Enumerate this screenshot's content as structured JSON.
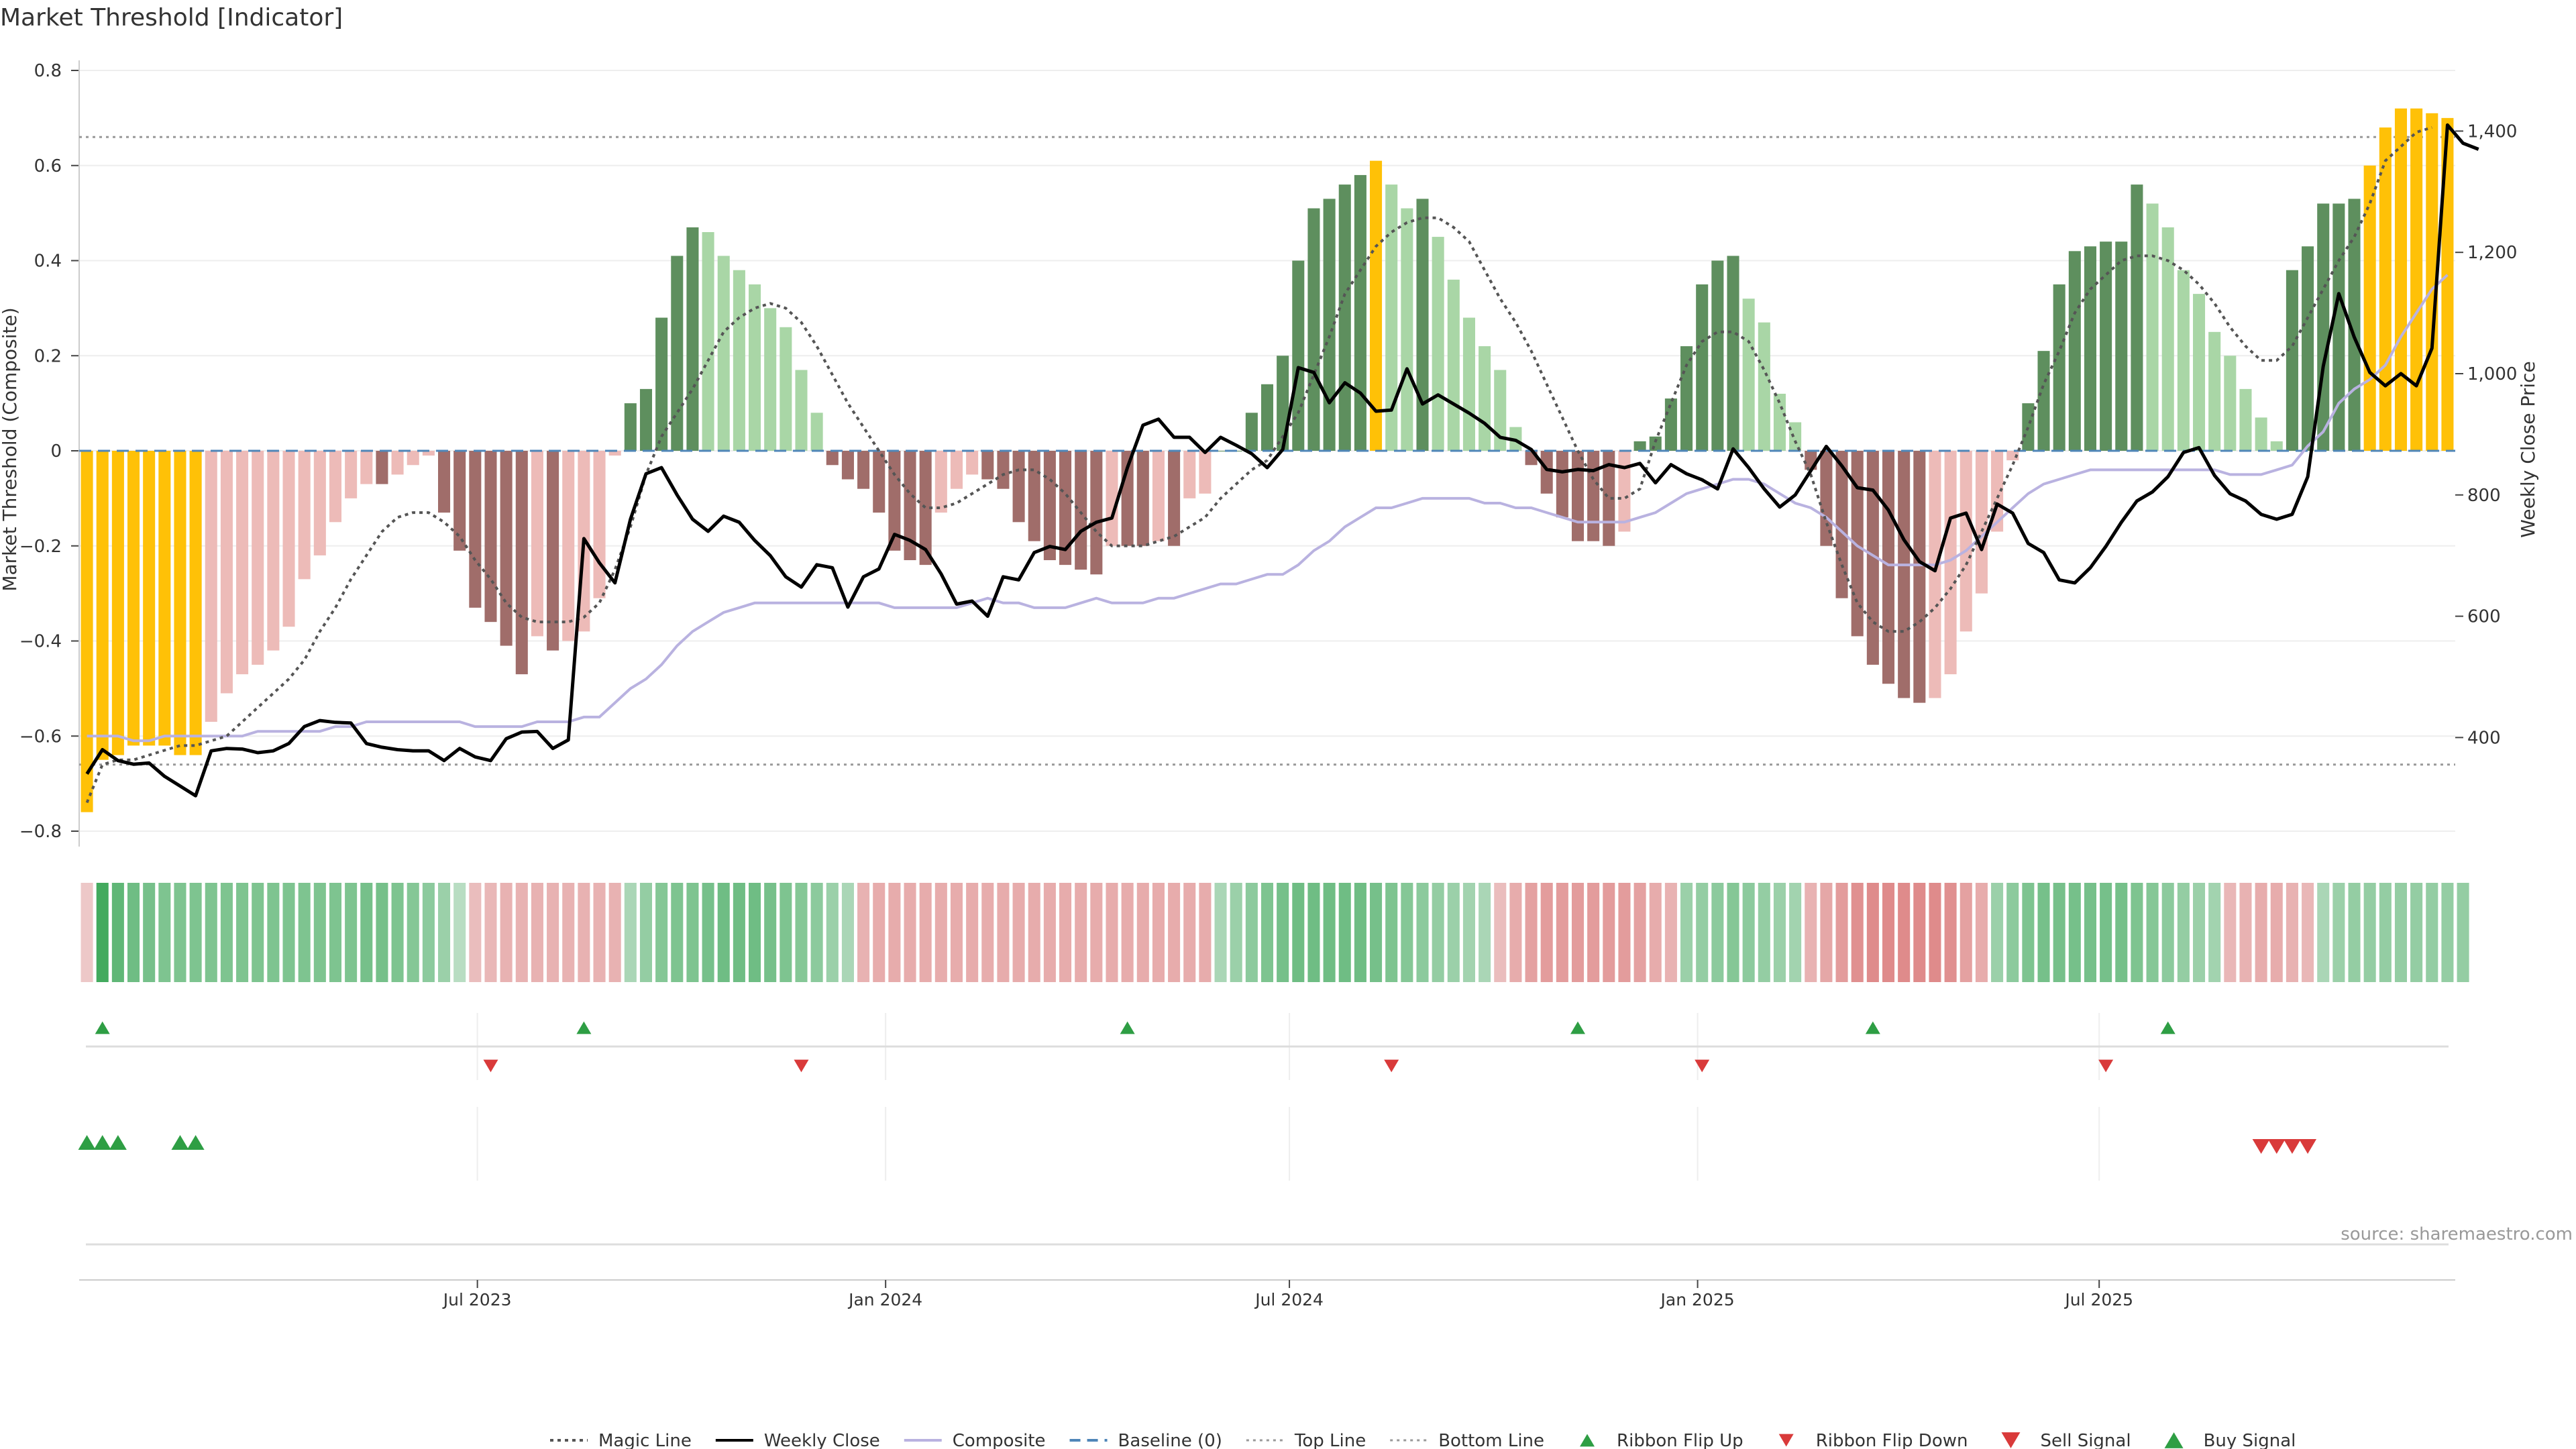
{
  "title": "Market Threshold [Indicator]",
  "source_note": "source: sharemaestro.com",
  "colors": {
    "extreme": "#FFC107",
    "pos_dark": "#5E8F5E",
    "pos_light": "#A9D6A6",
    "neg_dark": "#A06D6A",
    "neg_light": "#EDBBB8",
    "magic_line": "#555555",
    "weekly_close": "#000000",
    "composite": "#B9B2E0",
    "baseline": "#4F86B8",
    "threshold_line": "#999999",
    "ribbon_up": "#2E9E44",
    "ribbon_down": "#D93A3A",
    "grid": "#eeeeee"
  },
  "legend": [
    {
      "label": "Magic Line",
      "style": "dotted-line"
    },
    {
      "label": "Weekly Close",
      "style": "solid-line"
    },
    {
      "label": "Composite",
      "style": "composite-line"
    },
    {
      "label": "Baseline (0)",
      "style": "dashed-line"
    },
    {
      "label": "Top Line",
      "style": "fine-dotted-line"
    },
    {
      "label": "Bottom Line",
      "style": "fine-dotted-line"
    },
    {
      "label": "Ribbon Flip Up",
      "style": "triangle-up-green"
    },
    {
      "label": "Ribbon Flip Down",
      "style": "triangle-down-red"
    },
    {
      "label": "Sell Signal",
      "style": "triangle-down-red-large"
    },
    {
      "label": "Buy Signal",
      "style": "triangle-up-green-large"
    }
  ],
  "chart_data": {
    "type": "bar",
    "title": "Market Threshold [Indicator]",
    "x_start": "2023-01-06",
    "x_tick_labels": [
      "Jul 2023",
      "Jan 2024",
      "Jul 2024",
      "Jan 2025",
      "Jul 2025"
    ],
    "x_tick_dates": [
      "2023-07-01",
      "2024-01-01",
      "2024-07-01",
      "2025-01-01",
      "2025-07-01"
    ],
    "left_axis": {
      "label": "Market Threshold (Composite)",
      "range": [
        -0.8,
        0.8
      ],
      "ticks": [
        -0.8,
        -0.6,
        -0.4,
        -0.2,
        0,
        0.2,
        0.4,
        0.6,
        0.8
      ],
      "tick_labels": [
        "−0.8",
        "−0.6",
        "−0.4",
        "−0.2",
        "0",
        "0.2",
        "0.4",
        "0.6",
        "0.8"
      ]
    },
    "right_axis": {
      "label": "Weekly Close Price",
      "range": [
        250,
        1500
      ],
      "ticks": [
        400,
        600,
        800,
        1000,
        1200,
        1400
      ],
      "tick_labels": [
        "400",
        "600",
        "800",
        "1,000",
        "1,200",
        "1,400"
      ]
    },
    "top_line": 0.66,
    "bottom_line": -0.66,
    "grid": true,
    "legend_position": "bottom",
    "composite_bars": [
      -0.76,
      -0.65,
      -0.64,
      -0.62,
      -0.62,
      -0.62,
      -0.64,
      -0.64,
      -0.57,
      -0.51,
      -0.47,
      -0.45,
      -0.42,
      -0.37,
      -0.27,
      -0.22,
      -0.15,
      -0.1,
      -0.07,
      -0.07,
      -0.05,
      -0.03,
      -0.01,
      -0.13,
      -0.21,
      -0.33,
      -0.36,
      -0.41,
      -0.47,
      -0.39,
      -0.42,
      -0.4,
      -0.38,
      -0.31,
      -0.01,
      0.1,
      0.13,
      0.28,
      0.41,
      0.47,
      0.46,
      0.41,
      0.38,
      0.35,
      0.3,
      0.26,
      0.17,
      0.08,
      -0.03,
      -0.06,
      -0.08,
      -0.13,
      -0.21,
      -0.23,
      -0.24,
      -0.13,
      -0.08,
      -0.05,
      -0.06,
      -0.08,
      -0.15,
      -0.19,
      -0.23,
      -0.24,
      -0.25,
      -0.26,
      -0.2,
      -0.2,
      -0.2,
      -0.19,
      -0.2,
      -0.1,
      -0.09,
      0,
      0,
      0.08,
      0.14,
      0.2,
      0.4,
      0.51,
      0.53,
      0.56,
      0.58,
      0.61,
      0.56,
      0.51,
      0.53,
      0.45,
      0.36,
      0.28,
      0.22,
      0.17,
      0.05,
      -0.03,
      -0.09,
      -0.14,
      -0.19,
      -0.19,
      -0.2,
      -0.17,
      0.02,
      0.03,
      0.11,
      0.22,
      0.35,
      0.4,
      0.41,
      0.32,
      0.27,
      0.12,
      0.06,
      -0.04,
      -0.2,
      -0.31,
      -0.39,
      -0.45,
      -0.49,
      -0.52,
      -0.53,
      -0.52,
      -0.47,
      -0.38,
      -0.3,
      -0.17,
      -0.02,
      0.1,
      0.21,
      0.35,
      0.42,
      0.43,
      0.44,
      0.44,
      0.56,
      0.52,
      0.47,
      0.38,
      0.33,
      0.25,
      0.2,
      0.13,
      0.07,
      0.02,
      0.38,
      0.43,
      0.52,
      0.52,
      0.53,
      0.6,
      0.68,
      0.72,
      0.72,
      0.71,
      0.7
    ],
    "bar_shade_pattern": "dark when magnitude rising, light when falling; extreme (|v|>=0.6) drawn in amber",
    "magic_line": [
      -0.74,
      -0.66,
      -0.65,
      -0.65,
      -0.64,
      -0.63,
      -0.62,
      -0.62,
      -0.61,
      -0.6,
      -0.57,
      -0.54,
      -0.51,
      -0.48,
      -0.44,
      -0.38,
      -0.33,
      -0.27,
      -0.22,
      -0.17,
      -0.14,
      -0.13,
      -0.13,
      -0.15,
      -0.18,
      -0.23,
      -0.27,
      -0.32,
      -0.35,
      -0.36,
      -0.36,
      -0.36,
      -0.35,
      -0.32,
      -0.25,
      -0.16,
      -0.05,
      0.03,
      0.08,
      0.13,
      0.19,
      0.25,
      0.28,
      0.3,
      0.31,
      0.3,
      0.27,
      0.22,
      0.16,
      0.1,
      0.05,
      0.0,
      -0.05,
      -0.09,
      -0.12,
      -0.12,
      -0.11,
      -0.09,
      -0.07,
      -0.05,
      -0.04,
      -0.04,
      -0.06,
      -0.09,
      -0.13,
      -0.17,
      -0.2,
      -0.2,
      -0.2,
      -0.19,
      -0.18,
      -0.16,
      -0.14,
      -0.1,
      -0.07,
      -0.04,
      -0.02,
      0.03,
      0.08,
      0.16,
      0.24,
      0.33,
      0.38,
      0.43,
      0.46,
      0.48,
      0.49,
      0.49,
      0.47,
      0.44,
      0.38,
      0.32,
      0.27,
      0.21,
      0.14,
      0.07,
      0,
      -0.06,
      -0.1,
      -0.1,
      -0.08,
      0.02,
      0.1,
      0.18,
      0.23,
      0.25,
      0.25,
      0.23,
      0.17,
      0.1,
      0.02,
      -0.05,
      -0.15,
      -0.24,
      -0.32,
      -0.36,
      -0.38,
      -0.38,
      -0.36,
      -0.33,
      -0.29,
      -0.24,
      -0.17,
      -0.1,
      -0.03,
      0.05,
      0.14,
      0.21,
      0.29,
      0.34,
      0.37,
      0.4,
      0.41,
      0.41,
      0.4,
      0.38,
      0.35,
      0.31,
      0.26,
      0.22,
      0.19,
      0.19,
      0.22,
      0.28,
      0.34,
      0.4,
      0.45,
      0.52,
      0.61,
      0.64,
      0.67,
      0.68
    ],
    "composite_line": [
      -0.6,
      -0.6,
      -0.6,
      -0.61,
      -0.61,
      -0.6,
      -0.6,
      -0.6,
      -0.6,
      -0.6,
      -0.6,
      -0.59,
      -0.59,
      -0.59,
      -0.59,
      -0.59,
      -0.58,
      -0.58,
      -0.57,
      -0.57,
      -0.57,
      -0.57,
      -0.57,
      -0.57,
      -0.57,
      -0.58,
      -0.58,
      -0.58,
      -0.58,
      -0.57,
      -0.57,
      -0.57,
      -0.56,
      -0.56,
      -0.53,
      -0.5,
      -0.48,
      -0.45,
      -0.41,
      -0.38,
      -0.36,
      -0.34,
      -0.33,
      -0.32,
      -0.32,
      -0.32,
      -0.32,
      -0.32,
      -0.32,
      -0.32,
      -0.32,
      -0.32,
      -0.33,
      -0.33,
      -0.33,
      -0.33,
      -0.33,
      -0.32,
      -0.31,
      -0.32,
      -0.32,
      -0.33,
      -0.33,
      -0.33,
      -0.32,
      -0.31,
      -0.32,
      -0.32,
      -0.32,
      -0.31,
      -0.31,
      -0.3,
      -0.29,
      -0.28,
      -0.28,
      -0.27,
      -0.26,
      -0.26,
      -0.24,
      -0.21,
      -0.19,
      -0.16,
      -0.14,
      -0.12,
      -0.12,
      -0.11,
      -0.1,
      -0.1,
      -0.1,
      -0.1,
      -0.11,
      -0.11,
      -0.12,
      -0.12,
      -0.13,
      -0.14,
      -0.15,
      -0.15,
      -0.15,
      -0.15,
      -0.14,
      -0.13,
      -0.11,
      -0.09,
      -0.08,
      -0.07,
      -0.06,
      -0.06,
      -0.07,
      -0.09,
      -0.11,
      -0.12,
      -0.14,
      -0.17,
      -0.2,
      -0.22,
      -0.24,
      -0.24,
      -0.24,
      -0.24,
      -0.23,
      -0.21,
      -0.18,
      -0.15,
      -0.12,
      -0.09,
      -0.07,
      -0.06,
      -0.05,
      -0.04,
      -0.04,
      -0.04,
      -0.04,
      -0.04,
      -0.04,
      -0.04,
      -0.04,
      -0.04,
      -0.05,
      -0.05,
      -0.05,
      -0.04,
      -0.03,
      0.01,
      0.04,
      0.1,
      0.13,
      0.15,
      0.18,
      0.24,
      0.29,
      0.34,
      0.37
    ],
    "weekly_close": [
      340,
      380,
      362,
      356,
      358,
      336,
      320,
      304,
      378,
      382,
      381,
      375,
      378,
      390,
      418,
      428,
      425,
      424,
      390,
      384,
      380,
      378,
      378,
      362,
      382,
      368,
      362,
      398,
      409,
      410,
      382,
      396,
      728,
      688,
      655,
      760,
      835,
      845,
      800,
      760,
      740,
      765,
      755,
      725,
      700,
      665,
      648,
      685,
      680,
      615,
      665,
      678,
      735,
      725,
      710,
      670,
      620,
      625,
      600,
      665,
      660,
      705,
      715,
      710,
      740,
      755,
      762,
      845,
      915,
      925,
      895,
      895,
      870,
      895,
      882,
      868,
      845,
      875,
      1010,
      1002,
      952,
      985,
      968,
      938,
      940,
      1008,
      950,
      965,
      950,
      935,
      918,
      895,
      890,
      875,
      842,
      838,
      842,
      840,
      850,
      845,
      852,
      820,
      850,
      835,
      825,
      810,
      876,
      845,
      810,
      780,
      800,
      840,
      880,
      848,
      812,
      808,
      775,
      726,
      690,
      675,
      762,
      770,
      710,
      785,
      770,
      720,
      705,
      660,
      655,
      680,
      715,
      755,
      790,
      805,
      830,
      870,
      878,
      832,
      802,
      790,
      768,
      760,
      768,
      830,
      1012,
      1132,
      1060,
      1002,
      980,
      1000,
      980,
      1042,
      1410,
      1380,
      1370
    ],
    "ribbon_heat": [
      -0.1,
      0.9,
      0.7,
      0.6,
      0.55,
      0.5,
      0.5,
      0.5,
      0.5,
      0.5,
      0.5,
      0.5,
      0.5,
      0.5,
      0.5,
      0.5,
      0.5,
      0.5,
      0.55,
      0.55,
      0.5,
      0.45,
      0.4,
      0.3,
      0.1,
      -0.2,
      -0.25,
      -0.3,
      -0.3,
      -0.3,
      -0.3,
      -0.3,
      -0.3,
      -0.3,
      -0.3,
      0.2,
      0.35,
      0.45,
      0.5,
      0.5,
      0.55,
      0.6,
      0.6,
      0.6,
      0.55,
      0.5,
      0.45,
      0.4,
      0.3,
      0.2,
      -0.3,
      -0.35,
      -0.35,
      -0.35,
      -0.35,
      -0.35,
      -0.35,
      -0.35,
      -0.35,
      -0.35,
      -0.35,
      -0.35,
      -0.35,
      -0.35,
      -0.35,
      -0.35,
      -0.35,
      -0.35,
      -0.35,
      -0.35,
      -0.35,
      -0.35,
      -0.35,
      0.2,
      0.3,
      0.4,
      0.5,
      0.55,
      0.6,
      0.6,
      0.6,
      0.6,
      0.6,
      0.55,
      0.5,
      0.45,
      0.4,
      0.35,
      0.3,
      0.25,
      0.2,
      -0.2,
      -0.35,
      -0.45,
      -0.5,
      -0.5,
      -0.5,
      -0.5,
      -0.5,
      -0.5,
      -0.45,
      -0.35,
      -0.3,
      0.3,
      0.35,
      0.4,
      0.45,
      0.4,
      0.35,
      0.3,
      0.25,
      -0.3,
      -0.4,
      -0.5,
      -0.6,
      -0.65,
      -0.65,
      -0.65,
      -0.65,
      -0.65,
      -0.6,
      -0.45,
      -0.35,
      0.3,
      0.4,
      0.5,
      0.55,
      0.55,
      0.55,
      0.55,
      0.55,
      0.55,
      0.5,
      0.45,
      0.4,
      0.35,
      0.3,
      0.25,
      -0.25,
      -0.3,
      -0.35,
      -0.35,
      -0.3,
      -0.25,
      0.2,
      0.3,
      0.35,
      0.35,
      0.35,
      0.35,
      0.35,
      0.35,
      0.35,
      0.35
    ],
    "ribbon_flip_up_weeks": [
      1,
      32,
      67,
      96,
      115,
      134
    ],
    "ribbon_flip_down_weeks": [
      26,
      46,
      84,
      104,
      130
    ],
    "buy_signal_weeks": [
      0,
      1,
      2,
      6,
      7
    ],
    "sell_signal_weeks": [
      140,
      141,
      142,
      143
    ]
  }
}
